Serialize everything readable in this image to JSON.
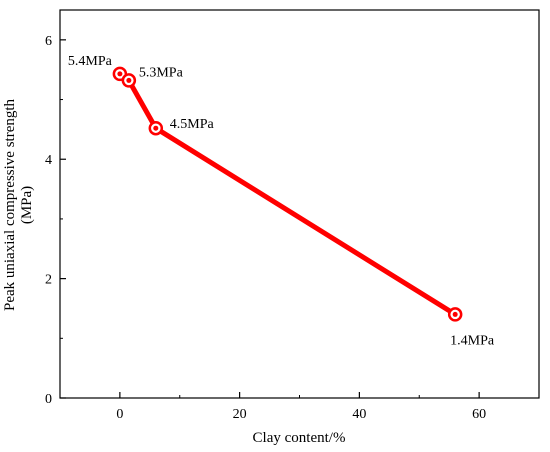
{
  "chart_data": {
    "type": "line",
    "xlabel": "Clay content/%",
    "ylabel_line1": "Peak uniaxial  compressive strength",
    "ylabel_line2": "(MPa)",
    "xlim": [
      -10,
      70
    ],
    "ylim": [
      0,
      6.5
    ],
    "x_ticks": [
      0,
      20,
      40,
      60
    ],
    "y_ticks": [
      0,
      2,
      4,
      6
    ],
    "grid": false,
    "legend": "none",
    "series": [
      {
        "x": [
          0,
          1.5,
          6,
          56
        ],
        "y": [
          5.43,
          5.32,
          4.52,
          1.4
        ],
        "labels": [
          "5.4MPa",
          "5.3MPa",
          "4.5MPa",
          "1.4MPa"
        ],
        "color": "#ff0000",
        "marker": "double-circle"
      }
    ]
  }
}
